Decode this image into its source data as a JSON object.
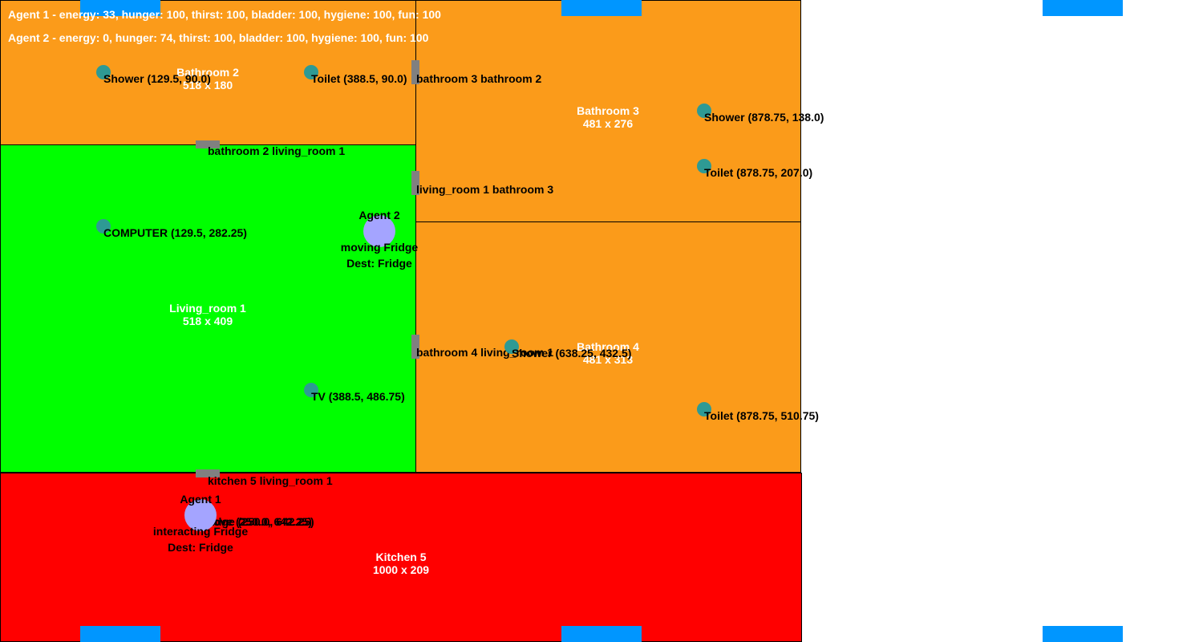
{
  "colors": {
    "bathroom": "#fb9b1a",
    "living_room": "#00ff00",
    "kitchen": "#ff0000",
    "door": "#808080",
    "object": "#2e9a94",
    "agent": "#a4a4ff",
    "window": "#0096ff"
  },
  "status": {
    "agent1": "Agent 1 - energy: 33, hunger: 100, thirst: 100, bladder: 100, hygiene: 100, fun: 100",
    "agent2": "Agent 2 - energy: 0, hunger: 74, thirst: 100, bladder: 100, hygiene: 100, fun: 100"
  },
  "rooms": {
    "bathroom2": {
      "name": "Bathroom 2",
      "size": "518 x 180"
    },
    "bathroom3": {
      "name": "Bathroom 3",
      "size": "481 x 276"
    },
    "living_room1": {
      "name": "Living_room 1",
      "size": "518 x 409"
    },
    "bathroom4": {
      "name": "Bathroom 4",
      "size": "481 x 313"
    },
    "kitchen5": {
      "name": "Kitchen 5",
      "size": "1000 x 209"
    }
  },
  "doors": {
    "bath3_bath2": "bathroom 3 bathroom 2",
    "bath2_living1": "bathroom 2 living_room 1",
    "living1_bath3": "living_room 1 bathroom 3",
    "bath4_living1": "bathroom 4 living_room 1",
    "kitchen5_living1": "kitchen 5 living_room 1"
  },
  "objects": {
    "shower_b2": "Shower (129.5, 90.0)",
    "toilet_b2": "Toilet (388.5, 90.0)",
    "shower_b3": "Shower (878.75, 138.0)",
    "toilet_b3": "Toilet (878.75, 207.0)",
    "computer": "COMPUTER (129.5, 282.25)",
    "tv": "TV (388.5, 486.75)",
    "shower_b4": "Shower (638.25, 432.5)",
    "toilet_b4": "Toilet (878.75, 510.75)",
    "fridge": "Fridge (250.0, 642.25)",
    "stove": "Stove (250.0, 642.25)"
  },
  "agents": {
    "agent1": {
      "name": "Agent 1",
      "action": "interacting Fridge",
      "dest": "Dest: Fridge"
    },
    "agent2": {
      "name": "Agent 2",
      "action": "moving Fridge",
      "dest": "Dest: Fridge"
    }
  }
}
